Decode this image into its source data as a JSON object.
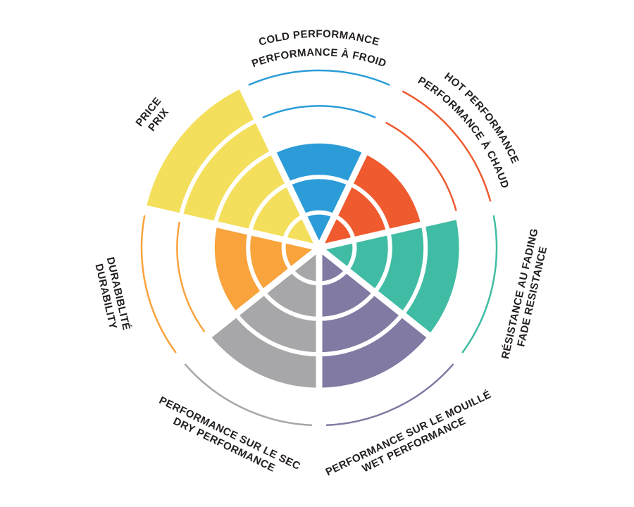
{
  "chart_data": {
    "type": "polar-sector",
    "description": "Seven-spoke circular performance rating wheel, each sector filled to a level out of 5 rings; unfilled levels shown as thin colored arcs; bilingual labels",
    "levels": 5,
    "value_range": [
      0,
      5
    ],
    "grid": "concentric white ring lines and white radial separators",
    "background_color": "#ffffff",
    "text_color": "#231f20",
    "sectors": [
      {
        "id": "cold",
        "lines": [
          "COLD PERFORMANCE",
          "PERFORMANCE À FROID"
        ],
        "value": 3,
        "color": "#2b9cd8",
        "label_style": "curved"
      },
      {
        "id": "hot",
        "lines": [
          "HOT PERFORMANCE",
          "PERFORMANCE À CHAUD"
        ],
        "value": 3,
        "color": "#ef5b2f",
        "label_style": "curved"
      },
      {
        "id": "fade",
        "lines": [
          "RÉSISTANCE AU FADING",
          "FADE RESISTANCE"
        ],
        "value": 4,
        "color": "#41bca4",
        "label_style": "straight"
      },
      {
        "id": "wet",
        "lines": [
          "PERFORMANCE SUR LE MOUILLÉ",
          "WET PERFORMANCE"
        ],
        "value": 4,
        "color": "#817aa3",
        "label_style": "straight"
      },
      {
        "id": "dry",
        "lines": [
          "PERFORMANCE SUR LE SEC",
          "DRY PERFORMANCE"
        ],
        "value": 4,
        "color": "#a7a7a9",
        "label_style": "straight"
      },
      {
        "id": "durability",
        "lines": [
          "DURABIBLITÉ",
          "DURABILITY"
        ],
        "value": 3,
        "color": "#f9a33c",
        "label_style": "straight"
      },
      {
        "id": "price",
        "lines": [
          "PRICE",
          "PRIX"
        ],
        "value": 5,
        "color": "#f3df5c",
        "label_style": "straight"
      }
    ]
  }
}
